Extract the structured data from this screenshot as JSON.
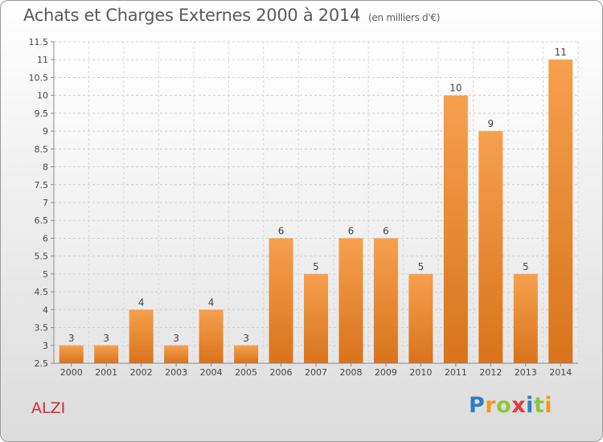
{
  "header": {
    "title": "Achats et Charges Externes 2000 à 2014",
    "unit": "(en milliers d'€)"
  },
  "commune": "ALZI",
  "logo": {
    "text": "Proxiti",
    "letters": [
      {
        "char": "P",
        "color": "#2e7fc4"
      },
      {
        "char": "r",
        "color": "#f29a1f"
      },
      {
        "char": "o",
        "color": "#8cc63e"
      },
      {
        "char": "x",
        "color": "#e23b3b"
      },
      {
        "char": "i",
        "color": "#2e7fc4"
      },
      {
        "char": "t",
        "color": "#8cc63e"
      },
      {
        "char": "i",
        "color": "#f29a1f"
      }
    ]
  },
  "chart_data": {
    "type": "bar",
    "title": "Achats et Charges Externes 2000 à 2014",
    "subtitle": "(en milliers d'€)",
    "categories": [
      "2000",
      "2001",
      "2002",
      "2003",
      "2004",
      "2005",
      "2006",
      "2007",
      "2008",
      "2009",
      "2010",
      "2011",
      "2012",
      "2013",
      "2014"
    ],
    "values": [
      3,
      3,
      4,
      3,
      4,
      3,
      6,
      5,
      6,
      6,
      5,
      10,
      9,
      5,
      11
    ],
    "data_labels": [
      "3",
      "3",
      "4",
      "3",
      "4",
      "3",
      "6",
      "5",
      "6",
      "6",
      "5",
      "10",
      "9",
      "5",
      "11"
    ],
    "ylim": [
      2.5,
      11.5
    ],
    "yticks": [
      "2.5",
      "3",
      "3.5",
      "4",
      "4.5",
      "5",
      "5.5",
      "6",
      "6.5",
      "7",
      "7.5",
      "8",
      "8.5",
      "9",
      "9.5",
      "10",
      "10.5",
      "11",
      "11.5"
    ],
    "grid": true,
    "bar_color_top": "#f6a04e",
    "bar_color_bottom": "#d9731c"
  }
}
